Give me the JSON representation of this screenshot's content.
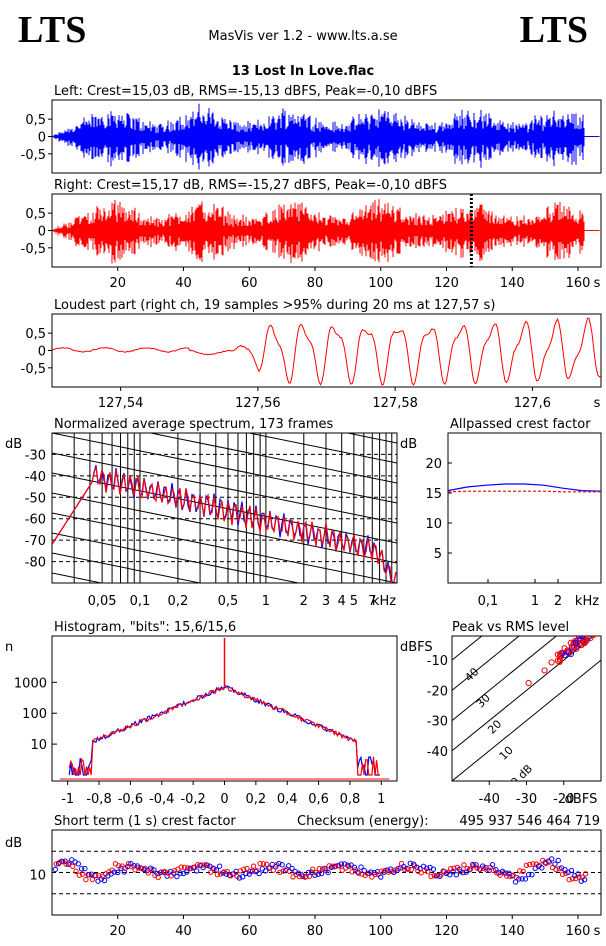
{
  "header": {
    "logo_left": "LTS",
    "logo_right": "LTS",
    "app_title": "MasVis ver 1.2 - www.lts.a.se",
    "file_title": "13 Lost In Love.flac"
  },
  "chart_data": [
    {
      "id": "left-waveform",
      "type": "area",
      "title": "Left: Crest=15,03 dB, RMS=-15,13 dBFS, Peak=-0,10 dBFS",
      "series": [
        {
          "name": "Left",
          "color": "#0000ff"
        }
      ],
      "xlim": [
        0,
        167
      ],
      "ylim": [
        -1,
        1
      ],
      "yticks": [
        "0,5",
        "0",
        "-0,5"
      ],
      "signal_end_s": 162
    },
    {
      "id": "right-waveform",
      "type": "area",
      "title": "Right: Crest=15,17 dB, RMS=-15,27 dBFS, Peak=-0,10 dBFS",
      "series": [
        {
          "name": "Right",
          "color": "#ff0000"
        }
      ],
      "xlim": [
        0,
        167
      ],
      "ylim": [
        -1,
        1
      ],
      "yticks": [
        "0,5",
        "0",
        "-0,5"
      ],
      "xticks": [
        "20",
        "40",
        "60",
        "80",
        "100",
        "120",
        "140",
        "160"
      ],
      "xunit": "s",
      "marker_s": 127.57
    },
    {
      "id": "loudest-part",
      "type": "line",
      "title": "Loudest part (right ch, 19 samples >95% during 20 ms at 127,57 s)",
      "series": [
        {
          "name": "Right",
          "color": "#ff0000"
        }
      ],
      "xlim": [
        127.53,
        127.61
      ],
      "ylim": [
        -1,
        1
      ],
      "yticks": [
        "0,5",
        "0",
        "-0,5"
      ],
      "xticks": [
        "127,54",
        "127,56",
        "127,58",
        "127,6"
      ],
      "xunit": "s"
    },
    {
      "id": "average-spectrum",
      "type": "line",
      "title": "Normalized average spectrum, 173 frames",
      "ylabel": "dB",
      "yticks": [
        "-30",
        "-40",
        "-50",
        "-60",
        "-70",
        "-80"
      ],
      "xticks": [
        "0,05",
        "0,1",
        "0,2",
        "0,5",
        "1",
        "2",
        "3",
        "4",
        "5",
        "7"
      ],
      "xunit": "kHz",
      "xlim": [
        0.02,
        11
      ],
      "ylim": [
        -90,
        -20
      ],
      "xscale": "log",
      "series": [
        {
          "name": "Left",
          "color": "#0000ff"
        },
        {
          "name": "Right",
          "color": "#ff0000"
        }
      ]
    },
    {
      "id": "allpassed-crest",
      "type": "line",
      "title": "Allpassed crest factor",
      "ylabel": "dB",
      "yticks": [
        "20",
        "15",
        "10",
        "5"
      ],
      "xticks": [
        "0,1",
        "1",
        "2"
      ],
      "xunit": "kHz",
      "ylim": [
        0,
        25
      ],
      "series": [
        {
          "name": "Left",
          "color": "#0000ff",
          "values": [
            15.4,
            16.0,
            16.3,
            16.5,
            16.5,
            16.3,
            15.8,
            15.4,
            15.3
          ]
        },
        {
          "name": "Right",
          "color": "#ff0000",
          "values": [
            15.2,
            15.3,
            15.3,
            15.3,
            15.3,
            15.3,
            15.2,
            15.2,
            15.2
          ]
        }
      ]
    },
    {
      "id": "histogram",
      "type": "line",
      "title": "Histogram, \"bits\": 15,6/15,6",
      "ylabel": "n",
      "yticks": [
        "1000",
        "100",
        "10"
      ],
      "xticks": [
        "-1",
        "-0,8",
        "-0,6",
        "-0,4",
        "-0,2",
        "0",
        "0,2",
        "0,4",
        "0,6",
        "0,8",
        "1"
      ],
      "xlim": [
        -1.1,
        1.1
      ],
      "yscale": "log",
      "series": [
        {
          "name": "Left",
          "color": "#0000ff"
        },
        {
          "name": "Right",
          "color": "#ff0000"
        }
      ]
    },
    {
      "id": "peak-vs-rms",
      "type": "scatter",
      "title": "Peak vs RMS level",
      "ylabel": "dBFS",
      "xlabel": "dBFS",
      "yticks": [
        "-10",
        "-20",
        "-30",
        "-40"
      ],
      "xticks": [
        "-40",
        "-30",
        "-20"
      ],
      "diagonal_labels": [
        "40",
        "30",
        "20",
        "10",
        "0 dB"
      ],
      "xlim": [
        -50,
        -10
      ],
      "ylim": [
        -50,
        -2
      ],
      "series": [
        {
          "name": "Left",
          "color": "#0000ff"
        },
        {
          "name": "Right",
          "color": "#ff0000"
        }
      ]
    },
    {
      "id": "short-term-crest",
      "type": "scatter",
      "title": "Short term (1 s) crest factor",
      "ylabel": "dB",
      "yticks": [
        "10"
      ],
      "xticks": [
        "20",
        "40",
        "60",
        "80",
        "100",
        "120",
        "140",
        "160"
      ],
      "xunit": "s",
      "xlim": [
        0,
        167
      ],
      "series": [
        {
          "name": "Left",
          "color": "#0000ff"
        },
        {
          "name": "Right",
          "color": "#ff0000"
        }
      ]
    }
  ],
  "checksum": {
    "label": "Checksum (energy):",
    "value": "495 937 546 464 719"
  }
}
